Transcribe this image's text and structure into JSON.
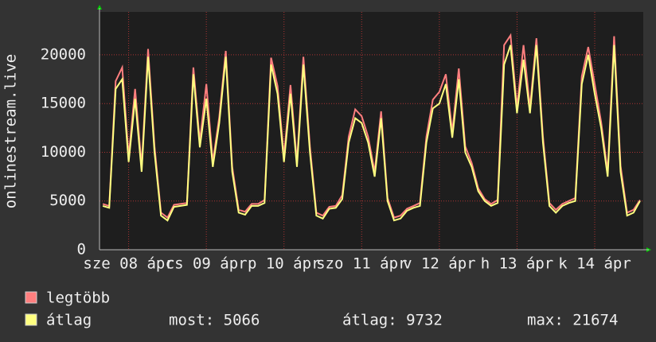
{
  "chart_data": {
    "type": "line",
    "y_label": "onlinestream.live",
    "categories": [
      null,
      null,
      null,
      null,
      "sze 08 ápr",
      null,
      null,
      null,
      null,
      null,
      null,
      null,
      null,
      null,
      null,
      null,
      "cs 09 ápr",
      null,
      null,
      null,
      null,
      null,
      null,
      null,
      null,
      null,
      null,
      null,
      "p 10 ápr",
      null,
      null,
      null,
      null,
      null,
      null,
      null,
      null,
      null,
      null,
      null,
      "szo 11 ápr",
      null,
      null,
      null,
      null,
      null,
      null,
      null,
      null,
      null,
      null,
      null,
      "v 12 ápr",
      null,
      null,
      null,
      null,
      null,
      null,
      null,
      null,
      null,
      null,
      null,
      "h 13 ápr",
      null,
      null,
      null,
      null,
      null,
      null,
      null,
      null,
      null,
      null,
      null,
      "k 14 ápr",
      null,
      null,
      null,
      null,
      null,
      null,
      null
    ],
    "series": [
      {
        "name": "legtöbb",
        "color": "#ff7f7f",
        "values": [
          4700,
          4500,
          17300,
          18700,
          9600,
          16500,
          8600,
          20600,
          10600,
          3800,
          3300,
          4600,
          4700,
          4800,
          18700,
          11100,
          17000,
          9000,
          13600,
          20400,
          8500,
          4100,
          3900,
          4700,
          4700,
          5100,
          19700,
          16800,
          9600,
          16900,
          9000,
          19800,
          10600,
          3800,
          3500,
          4400,
          4500,
          5600,
          11600,
          14400,
          13700,
          11600,
          8000,
          14200,
          5300,
          3300,
          3500,
          4200,
          4500,
          4800,
          11600,
          15400,
          16200,
          18000,
          12100,
          18600,
          10600,
          8900,
          6300,
          5200,
          4700,
          5100,
          21000,
          22000,
          14600,
          21000,
          14600,
          21700,
          11600,
          4800,
          4100,
          4700,
          5000,
          5300,
          17800,
          20800,
          17000,
          13100,
          8000,
          21900,
          8600,
          3800,
          4100,
          5100
        ]
      },
      {
        "name": "átlag",
        "color": "#ffff80",
        "values": [
          4500,
          4300,
          16500,
          17500,
          9000,
          15500,
          8000,
          19800,
          10000,
          3500,
          3000,
          4400,
          4500,
          4600,
          18000,
          10500,
          15500,
          8500,
          13000,
          19800,
          8000,
          3800,
          3600,
          4500,
          4500,
          4800,
          19000,
          16000,
          9000,
          16000,
          8500,
          19000,
          10000,
          3500,
          3200,
          4200,
          4300,
          5200,
          11000,
          13500,
          13000,
          11000,
          7500,
          13500,
          5000,
          3000,
          3200,
          4000,
          4300,
          4500,
          11000,
          14500,
          15000,
          17000,
          11500,
          17500,
          10000,
          8500,
          6000,
          5000,
          4500,
          4800,
          19000,
          21000,
          14000,
          19500,
          14000,
          21000,
          11000,
          4500,
          3800,
          4500,
          4800,
          5000,
          17000,
          20000,
          16000,
          12500,
          7500,
          21000,
          8000,
          3500,
          3800,
          5000
        ]
      }
    ],
    "stats": [
      "most: 5066",
      "átlag: 9732",
      "max: 21674"
    ],
    "ylim": [
      0,
      24400
    ],
    "yticks": [
      0,
      5000,
      10000,
      15000,
      20000
    ],
    "grid": true
  }
}
